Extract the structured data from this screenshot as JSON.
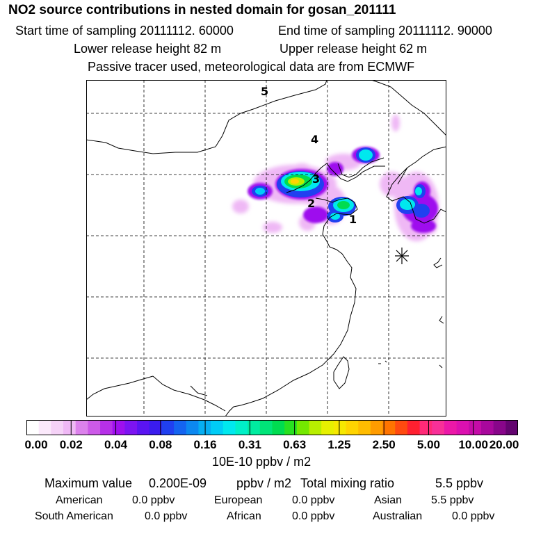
{
  "header": {
    "title": "NO2 source contributions in nested domain for gosan_201111",
    "start_label": "Start time of sampling 20111112. 60000",
    "end_label": "End time of sampling 20111112. 90000",
    "lower_label": "Lower release height   82 m",
    "upper_label": "Upper release height   62 m",
    "passive_label": "Passive tracer used, meteorological data are from ECMWF"
  },
  "map": {
    "region_labels": [
      "1",
      "2",
      "3",
      "4",
      "5"
    ],
    "receptor_marker": "asterisk-receptor-icon"
  },
  "colorbar": {
    "ticks": [
      "0.00",
      "0.02",
      "0.04",
      "0.08",
      "0.16",
      "0.31",
      "0.63",
      "1.25",
      "2.50",
      "5.00",
      "10.00",
      "20.00"
    ],
    "colors": [
      "#ffffff",
      "#fbe9fb",
      "#f5d2f7",
      "#efb8f5",
      "#dc82ec",
      "#cc5ae8",
      "#b630e8",
      "#9e10ee",
      "#7c14f2",
      "#5a14f2",
      "#3a1cee",
      "#2040f0",
      "#1464f0",
      "#0c88f0",
      "#06aef2",
      "#00ccf6",
      "#00e8ee",
      "#00f0c8",
      "#00eca0",
      "#00e478",
      "#00dc50",
      "#28e020",
      "#74e800",
      "#b8ee00",
      "#e6f000",
      "#f6e800",
      "#ffd400",
      "#ffbc00",
      "#ff9c00",
      "#ff7400",
      "#ff4a10",
      "#ff2030",
      "#ff2a78",
      "#f83098",
      "#ec18a8",
      "#dc10b0",
      "#c40ca8",
      "#a8089c",
      "#88068a",
      "#640470"
    ],
    "units": "10E-10 ppbv / m2"
  },
  "summary": {
    "max_label": "Maximum value",
    "max_value": "0.200E-09",
    "max_unit": "ppbv / m2",
    "total_label": "Total mixing ratio",
    "total_value": "5.5 ppbv",
    "regions": [
      {
        "name": "American",
        "value": "0.0 ppbv"
      },
      {
        "name": "European",
        "value": "0.0 ppbv"
      },
      {
        "name": "Asian",
        "value": "5.5 ppbv"
      },
      {
        "name": "South American",
        "value": "0.0 ppbv"
      },
      {
        "name": "African",
        "value": "0.0 ppbv"
      },
      {
        "name": "Australian",
        "value": "0.0 ppbv"
      }
    ]
  }
}
